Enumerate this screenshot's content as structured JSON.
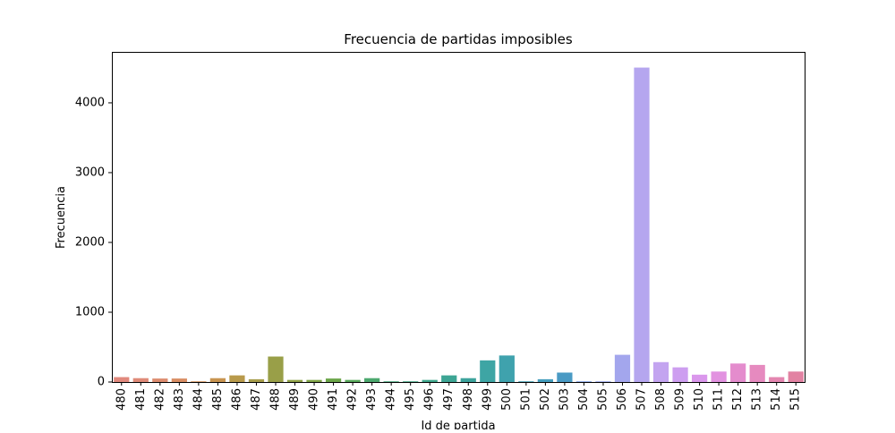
{
  "chart_data": {
    "type": "bar",
    "title": "Frecuencia de partidas imposibles",
    "xlabel": "Id de partida",
    "ylabel": "Frecuencia",
    "categories": [
      "480",
      "481",
      "482",
      "483",
      "484",
      "485",
      "486",
      "487",
      "488",
      "489",
      "490",
      "491",
      "492",
      "493",
      "494",
      "495",
      "496",
      "497",
      "498",
      "499",
      "500",
      "501",
      "502",
      "503",
      "504",
      "505",
      "506",
      "507",
      "508",
      "509",
      "510",
      "511",
      "512",
      "513",
      "514",
      "515"
    ],
    "values": [
      70,
      55,
      50,
      50,
      10,
      55,
      95,
      40,
      365,
      30,
      30,
      50,
      30,
      55,
      10,
      10,
      30,
      95,
      55,
      310,
      380,
      10,
      40,
      135,
      10,
      10,
      390,
      4505,
      285,
      210,
      105,
      150,
      265,
      245,
      70,
      150
    ],
    "colors": [
      "#e1897d",
      "#df8a78",
      "#dd8c6f",
      "#d98d63",
      "#d49157",
      "#c89450",
      "#b89a4b",
      "#a79d4b",
      "#999f48",
      "#8fa146",
      "#7fa446",
      "#6ba649",
      "#57a85a",
      "#4ca86e",
      "#44a87c",
      "#3fa783",
      "#3ea78c",
      "#3da594",
      "#3ca39c",
      "#3ea5a4",
      "#3fa2ad",
      "#40a0b5",
      "#449dbd",
      "#499ac4",
      "#7ea0e6",
      "#95a4ec",
      "#a3a6ed",
      "#b5a6ef",
      "#c3a4f0",
      "#cd9ef0",
      "#da97ec",
      "#e292e0",
      "#e48ccd",
      "#e68abf",
      "#e486b0",
      "#e282a2"
    ],
    "ylim": [
      0,
      4730
    ],
    "yticks": [
      0,
      1000,
      2000,
      3000,
      4000
    ],
    "grid": false
  }
}
